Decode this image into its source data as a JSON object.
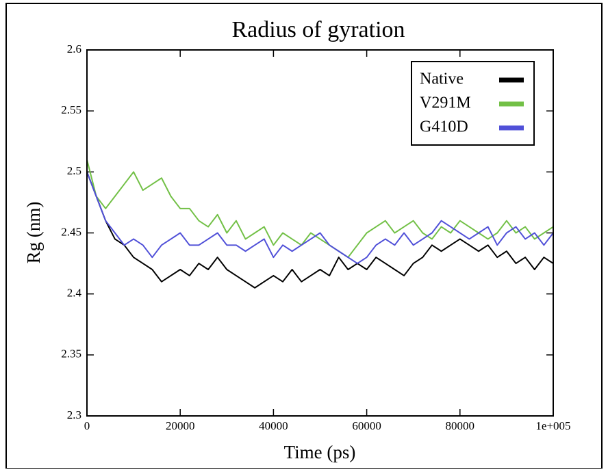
{
  "chart_data": {
    "type": "line",
    "title": "Radius of gyration",
    "xlabel": "Time (ps)",
    "ylabel": "Rg (nm)",
    "x": [
      0,
      2000,
      4000,
      6000,
      8000,
      10000,
      12000,
      14000,
      16000,
      18000,
      20000,
      22000,
      24000,
      26000,
      28000,
      30000,
      32000,
      34000,
      36000,
      38000,
      40000,
      42000,
      44000,
      46000,
      48000,
      50000,
      52000,
      54000,
      56000,
      58000,
      60000,
      62000,
      64000,
      66000,
      68000,
      70000,
      72000,
      74000,
      76000,
      78000,
      80000,
      82000,
      84000,
      86000,
      88000,
      90000,
      92000,
      94000,
      96000,
      98000,
      100000
    ],
    "series": [
      {
        "name": "Native",
        "color": "#000000",
        "values": [
          2.5,
          2.48,
          2.46,
          2.445,
          2.44,
          2.43,
          2.425,
          2.42,
          2.41,
          2.415,
          2.42,
          2.415,
          2.425,
          2.42,
          2.43,
          2.42,
          2.415,
          2.41,
          2.405,
          2.41,
          2.415,
          2.41,
          2.42,
          2.41,
          2.415,
          2.42,
          2.415,
          2.43,
          2.42,
          2.425,
          2.42,
          2.43,
          2.425,
          2.42,
          2.415,
          2.425,
          2.43,
          2.44,
          2.435,
          2.44,
          2.445,
          2.44,
          2.435,
          2.44,
          2.43,
          2.435,
          2.425,
          2.43,
          2.42,
          2.43,
          2.425
        ]
      },
      {
        "name": "V291M",
        "color": "#72c046",
        "values": [
          2.51,
          2.48,
          2.47,
          2.48,
          2.49,
          2.5,
          2.485,
          2.49,
          2.495,
          2.48,
          2.47,
          2.47,
          2.46,
          2.455,
          2.465,
          2.45,
          2.46,
          2.445,
          2.45,
          2.455,
          2.44,
          2.45,
          2.445,
          2.44,
          2.45,
          2.445,
          2.44,
          2.435,
          2.43,
          2.44,
          2.45,
          2.455,
          2.46,
          2.45,
          2.455,
          2.46,
          2.45,
          2.445,
          2.455,
          2.45,
          2.46,
          2.455,
          2.45,
          2.445,
          2.45,
          2.46,
          2.45,
          2.455,
          2.445,
          2.45,
          2.455
        ]
      },
      {
        "name": "G410D",
        "color": "#5050d8",
        "values": [
          2.5,
          2.48,
          2.46,
          2.45,
          2.44,
          2.445,
          2.44,
          2.43,
          2.44,
          2.445,
          2.45,
          2.44,
          2.44,
          2.445,
          2.45,
          2.44,
          2.44,
          2.435,
          2.44,
          2.445,
          2.43,
          2.44,
          2.435,
          2.44,
          2.445,
          2.45,
          2.44,
          2.435,
          2.43,
          2.425,
          2.43,
          2.44,
          2.445,
          2.44,
          2.45,
          2.44,
          2.445,
          2.45,
          2.46,
          2.455,
          2.45,
          2.445,
          2.45,
          2.455,
          2.44,
          2.45,
          2.455,
          2.445,
          2.45,
          2.44,
          2.45
        ]
      }
    ],
    "xlim": [
      0,
      100000
    ],
    "xticks": [
      0,
      20000,
      40000,
      60000,
      80000,
      {
        "value": 100000,
        "label": "1e+005"
      }
    ],
    "ylim": [
      2.3,
      2.6
    ],
    "yticks": [
      2.3,
      2.35,
      2.4,
      2.45,
      2.5,
      2.55,
      2.6
    ],
    "grid": false,
    "legend": "upper right"
  }
}
